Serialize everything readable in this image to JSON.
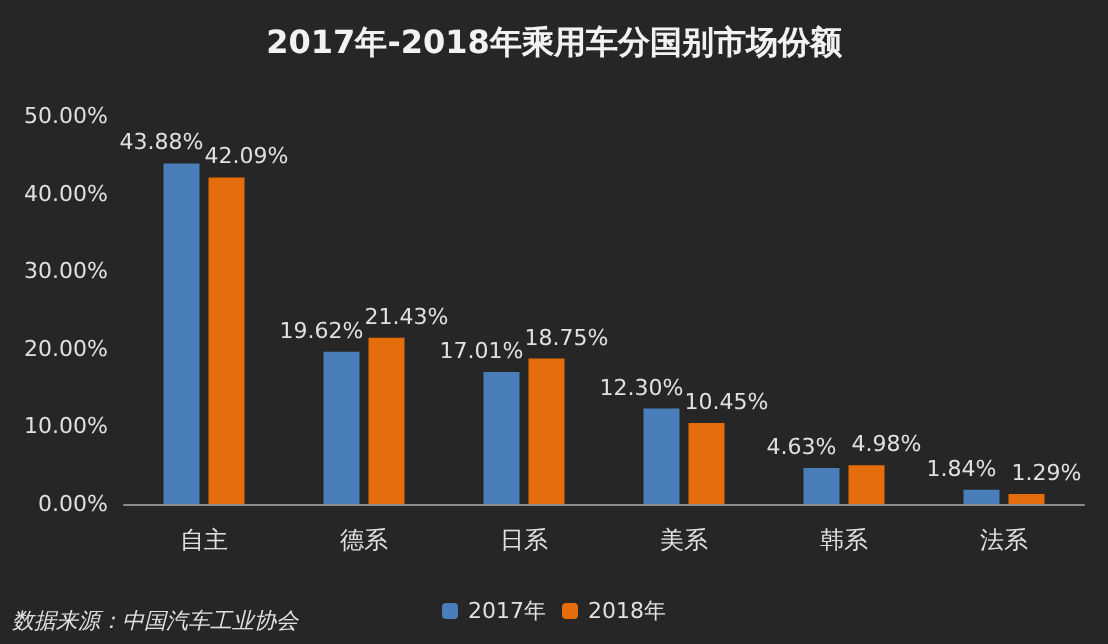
{
  "chart_data": {
    "type": "bar",
    "title": "2017年-2018年乘用车分国别市场份额",
    "categories": [
      "自主",
      "德系",
      "日系",
      "美系",
      "韩系",
      "法系"
    ],
    "series": [
      {
        "name": "2017年",
        "color": "#4a7ebb",
        "values": [
          43.88,
          19.62,
          17.01,
          12.3,
          4.63,
          1.84
        ],
        "value_labels": [
          "43.88%",
          "19.62%",
          "17.01%",
          "12.30%",
          "4.63%",
          "1.84%"
        ]
      },
      {
        "name": "2018年",
        "color": "#e46c0a",
        "values": [
          42.09,
          21.43,
          18.75,
          10.45,
          4.98,
          1.29
        ],
        "value_labels": [
          "42.09%",
          "21.43%",
          "18.75%",
          "10.45%",
          "4.98%",
          "1.29%"
        ]
      }
    ],
    "ylim": [
      0,
      50
    ],
    "yticks": [
      {
        "value": 0,
        "label": "0.00%"
      },
      {
        "value": 10,
        "label": "10.00%"
      },
      {
        "value": 20,
        "label": "20.00%"
      },
      {
        "value": 30,
        "label": "30.00%"
      },
      {
        "value": 40,
        "label": "40.00%"
      },
      {
        "value": 50,
        "label": "50.00%"
      }
    ],
    "grid": false,
    "legend": "bottom",
    "annotations": [
      "数据来源：中国汽车工业协会"
    ]
  }
}
